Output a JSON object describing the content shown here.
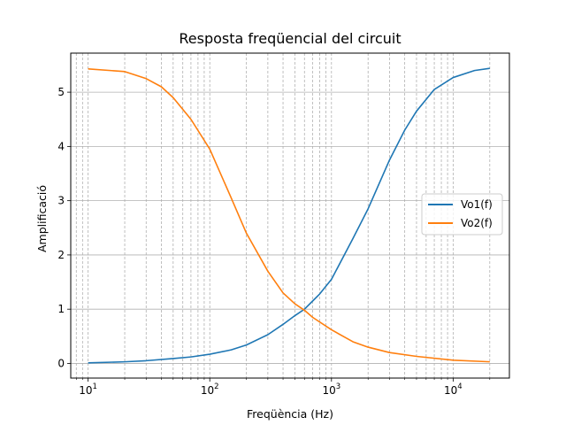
{
  "chart_data": {
    "type": "line",
    "title": "Resposta freqüencial del circuit",
    "xlabel": "Freqüència (Hz)",
    "ylabel": "Amplificació",
    "xscale": "log",
    "xlim": [
      7.2,
      29000
    ],
    "ylim": [
      -0.27,
      5.72
    ],
    "grid": {
      "major": true,
      "minor_x": true
    },
    "legend_position": "center-right",
    "x_ticks": [
      {
        "value": 10,
        "base": "10",
        "exp": "1"
      },
      {
        "value": 100,
        "base": "10",
        "exp": "2"
      },
      {
        "value": 1000,
        "base": "10",
        "exp": "3"
      },
      {
        "value": 10000,
        "base": "10",
        "exp": "4"
      }
    ],
    "y_ticks": [
      0,
      1,
      2,
      3,
      4,
      5
    ],
    "series": [
      {
        "name": "Vo1(f)",
        "color": "#1f77b4",
        "x": [
          10,
          20,
          30,
          50,
          70,
          100,
          150,
          200,
          300,
          400,
          500,
          600,
          700,
          800,
          1000,
          1500,
          2000,
          3000,
          4000,
          5000,
          7000,
          10000,
          15000,
          20000
        ],
        "y": [
          0.01,
          0.03,
          0.05,
          0.09,
          0.12,
          0.17,
          0.25,
          0.34,
          0.53,
          0.72,
          0.88,
          1.0,
          1.15,
          1.28,
          1.55,
          2.3,
          2.85,
          3.75,
          4.3,
          4.65,
          5.05,
          5.27,
          5.4,
          5.44
        ]
      },
      {
        "name": "Vo2(f)",
        "color": "#ff7f0e",
        "x": [
          10,
          20,
          30,
          40,
          50,
          70,
          100,
          150,
          200,
          300,
          400,
          500,
          600,
          700,
          1000,
          1500,
          2000,
          3000,
          5000,
          10000,
          20000
        ],
        "y": [
          5.43,
          5.38,
          5.25,
          5.1,
          4.9,
          4.5,
          3.95,
          3.05,
          2.4,
          1.7,
          1.3,
          1.1,
          0.98,
          0.85,
          0.62,
          0.4,
          0.3,
          0.2,
          0.13,
          0.06,
          0.03
        ]
      }
    ]
  }
}
